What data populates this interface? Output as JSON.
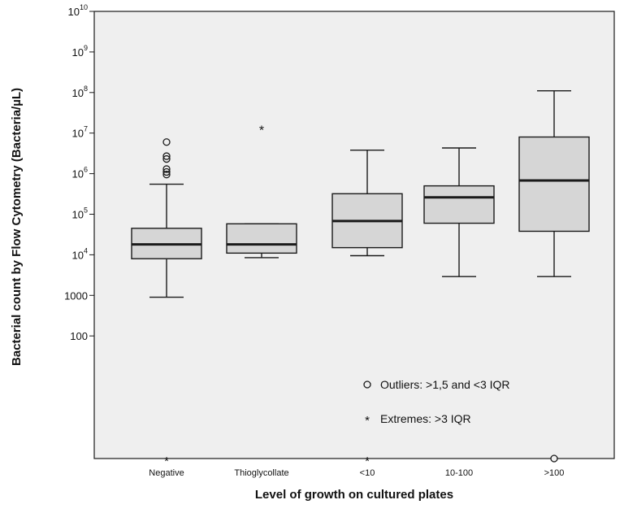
{
  "chart_data": {
    "type": "boxplot",
    "xlabel": "Level of growth on cultured plates",
    "ylabel": "Bacterial count by Flow Cytometry (Bacteria/µL)",
    "y_scale": "log10",
    "ylim": [
      1,
      10000000000
    ],
    "y_ticks": [
      {
        "value": 10000000000,
        "label": "10",
        "exp": "10"
      },
      {
        "value": 1000000000,
        "label": "10",
        "exp": "9"
      },
      {
        "value": 100000000,
        "label": "10",
        "exp": "8"
      },
      {
        "value": 10000000,
        "label": "10",
        "exp": "7"
      },
      {
        "value": 1000000,
        "label": "10",
        "exp": "6"
      },
      {
        "value": 100000,
        "label": "10",
        "exp": "5"
      },
      {
        "value": 10000,
        "label": "10",
        "exp": "4"
      },
      {
        "value": 1000,
        "label": "1000",
        "exp": ""
      },
      {
        "value": 100,
        "label": "100",
        "exp": ""
      }
    ],
    "categories": [
      "Negative",
      "Thioglycollate",
      "<10",
      "10-100",
      ">100"
    ],
    "boxes": [
      {
        "category": "Negative",
        "whisker_low": 900,
        "q1": 8000,
        "median": 18000,
        "q3": 45000,
        "whisker_high": 550000,
        "outliers": [
          6000000,
          2700000,
          2300000,
          1300000,
          1100000,
          950000
        ],
        "extremes": [],
        "bottom_marker": "extreme"
      },
      {
        "category": "Thioglycollate",
        "whisker_low": 8500,
        "q1": 11000,
        "median": 18000,
        "q3": 58000,
        "whisker_high": 58000,
        "outliers": [],
        "extremes": [
          12000000
        ],
        "bottom_marker": "none"
      },
      {
        "category": "<10",
        "whisker_low": 9500,
        "q1": 15000,
        "median": 68000,
        "q3": 320000,
        "whisker_high": 3800000,
        "outliers": [],
        "extremes": [],
        "bottom_marker": "extreme"
      },
      {
        "category": "10-100",
        "whisker_low": 2900,
        "q1": 60000,
        "median": 260000,
        "q3": 500000,
        "whisker_high": 4300000,
        "outliers": [],
        "extremes": [],
        "bottom_marker": "none"
      },
      {
        "category": ">100",
        "whisker_low": 2900,
        "q1": 38000,
        "median": 680000,
        "q3": 8000000,
        "whisker_high": 110000000,
        "outliers": [],
        "extremes": [],
        "bottom_marker": "outlier"
      }
    ],
    "legend": [
      {
        "symbol": "outlier",
        "label": "Outliers: >1,5 and <3 IQR"
      },
      {
        "symbol": "extreme",
        "label": "Extremes: >3 IQR"
      }
    ],
    "colors": {
      "plot_background": "#efefef",
      "box_fill": "#d6d6d6",
      "stroke": "#1a1a1a"
    },
    "grid": false
  }
}
